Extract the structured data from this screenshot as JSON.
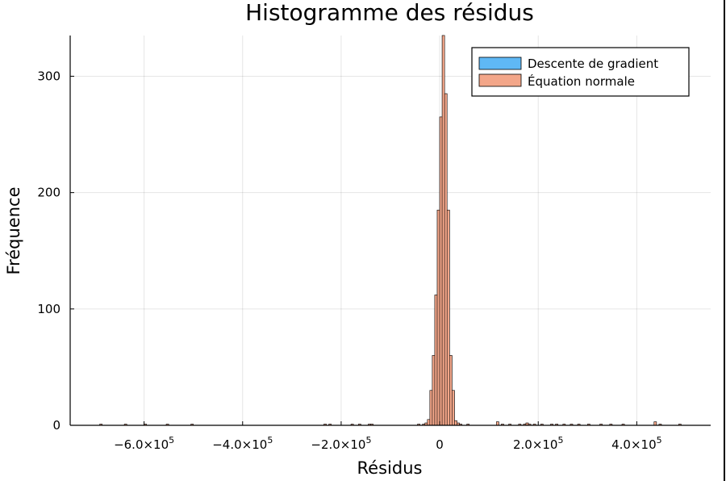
{
  "chart_data": {
    "type": "bar",
    "title": "Histogramme des résidus",
    "xlabel": "Résidus",
    "ylabel": "Fréquence",
    "xlim": [
      -750000,
      550000
    ],
    "ylim": [
      0,
      335
    ],
    "grid": true,
    "legend_position": "top-right",
    "x_ticks": [
      {
        "value": -600000,
        "mantissa": "−6.0×10",
        "exp": "5"
      },
      {
        "value": -400000,
        "mantissa": "−4.0×10",
        "exp": "5"
      },
      {
        "value": -200000,
        "mantissa": "−2.0×10",
        "exp": "5"
      },
      {
        "value": 0,
        "mantissa": "0",
        "exp": ""
      },
      {
        "value": 200000,
        "mantissa": "2.0×10",
        "exp": "5"
      },
      {
        "value": 400000,
        "mantissa": "4.0×10",
        "exp": "5"
      }
    ],
    "y_ticks": [
      0,
      100,
      200,
      300
    ],
    "bin_width": 5000,
    "series": [
      {
        "name": "Descente de gradient",
        "color": "#5fb8f5",
        "bins": [
          [
            -690000,
            1
          ],
          [
            -640000,
            1
          ],
          [
            -600000,
            1
          ],
          [
            -555000,
            1
          ],
          [
            -505000,
            1
          ],
          [
            -235000,
            1
          ],
          [
            -225000,
            1
          ],
          [
            -180000,
            1
          ],
          [
            -165000,
            1
          ],
          [
            -145000,
            1
          ],
          [
            -140000,
            1
          ],
          [
            -45000,
            1
          ],
          [
            -35000,
            1
          ],
          [
            -30000,
            2
          ],
          [
            -25000,
            5
          ],
          [
            -20000,
            30
          ],
          [
            -15000,
            60
          ],
          [
            -10000,
            112
          ],
          [
            -5000,
            185
          ],
          [
            0,
            265
          ],
          [
            5000,
            335
          ],
          [
            10000,
            285
          ],
          [
            15000,
            185
          ],
          [
            20000,
            60
          ],
          [
            25000,
            30
          ],
          [
            30000,
            4
          ],
          [
            35000,
            2
          ],
          [
            40000,
            1
          ],
          [
            55000,
            1
          ],
          [
            115000,
            3
          ],
          [
            125000,
            1
          ],
          [
            140000,
            1
          ],
          [
            160000,
            1
          ],
          [
            170000,
            1
          ],
          [
            175000,
            2
          ],
          [
            180000,
            1
          ],
          [
            190000,
            1
          ],
          [
            205000,
            1
          ],
          [
            225000,
            1
          ],
          [
            235000,
            1
          ],
          [
            250000,
            1
          ],
          [
            265000,
            1
          ],
          [
            280000,
            1
          ],
          [
            300000,
            1
          ],
          [
            325000,
            1
          ],
          [
            345000,
            1
          ],
          [
            370000,
            1
          ],
          [
            435000,
            3
          ],
          [
            445000,
            1
          ],
          [
            485000,
            1
          ]
        ]
      },
      {
        "name": "Équation normale",
        "color": "#f3a689",
        "bins": [
          [
            -690000,
            1
          ],
          [
            -640000,
            1
          ],
          [
            -600000,
            1
          ],
          [
            -555000,
            1
          ],
          [
            -505000,
            1
          ],
          [
            -235000,
            1
          ],
          [
            -225000,
            1
          ],
          [
            -180000,
            1
          ],
          [
            -165000,
            1
          ],
          [
            -145000,
            1
          ],
          [
            -140000,
            1
          ],
          [
            -45000,
            1
          ],
          [
            -35000,
            1
          ],
          [
            -30000,
            2
          ],
          [
            -25000,
            5
          ],
          [
            -20000,
            30
          ],
          [
            -15000,
            60
          ],
          [
            -10000,
            112
          ],
          [
            -5000,
            185
          ],
          [
            0,
            265
          ],
          [
            5000,
            335
          ],
          [
            10000,
            285
          ],
          [
            15000,
            185
          ],
          [
            20000,
            60
          ],
          [
            25000,
            30
          ],
          [
            30000,
            4
          ],
          [
            35000,
            2
          ],
          [
            40000,
            1
          ],
          [
            55000,
            1
          ],
          [
            115000,
            3
          ],
          [
            125000,
            1
          ],
          [
            140000,
            1
          ],
          [
            160000,
            1
          ],
          [
            170000,
            1
          ],
          [
            175000,
            2
          ],
          [
            180000,
            1
          ],
          [
            190000,
            1
          ],
          [
            205000,
            1
          ],
          [
            225000,
            1
          ],
          [
            235000,
            1
          ],
          [
            250000,
            1
          ],
          [
            265000,
            1
          ],
          [
            280000,
            1
          ],
          [
            300000,
            1
          ],
          [
            325000,
            1
          ],
          [
            345000,
            1
          ],
          [
            370000,
            1
          ],
          [
            435000,
            3
          ],
          [
            445000,
            1
          ],
          [
            485000,
            1
          ]
        ]
      }
    ]
  }
}
